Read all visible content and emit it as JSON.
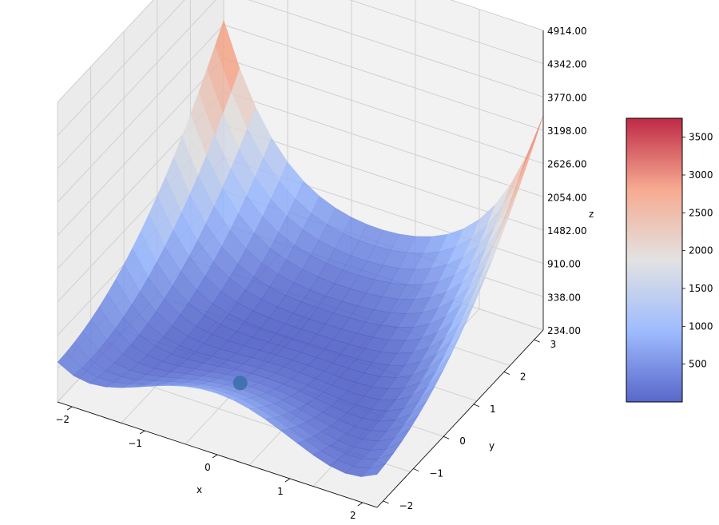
{
  "chart_data": {
    "type": "surface3d",
    "title": "",
    "xlabel": "x",
    "ylabel": "y",
    "zlabel": "z",
    "x_ticks": [
      "−2",
      "−1",
      "0",
      "1",
      "2"
    ],
    "y_ticks": [
      "−2",
      "−1",
      "0",
      "1",
      "2",
      "3"
    ],
    "z_ticks": [
      "234.00",
      "338.00",
      "910.00",
      "1482.00",
      "2054.00",
      "2626.00",
      "3198.00",
      "3770.00",
      "4342.00",
      "4914.00"
    ],
    "xlim": [
      -2.2,
      2.2
    ],
    "ylim": [
      -2.2,
      3.3
    ],
    "zlim": [
      -200,
      4914
    ],
    "colormap": "coolwarm",
    "colorbar": {
      "ticks": [
        "500",
        "1000",
        "1500",
        "2000",
        "2500",
        "3000",
        "3500"
      ],
      "range": [
        0,
        3750
      ]
    },
    "surface_z_range": [
      0,
      3750
    ],
    "marker": {
      "x": -0.35,
      "y": -0.6,
      "z": 0,
      "color": "#3a6fa8"
    },
    "grid": true
  }
}
